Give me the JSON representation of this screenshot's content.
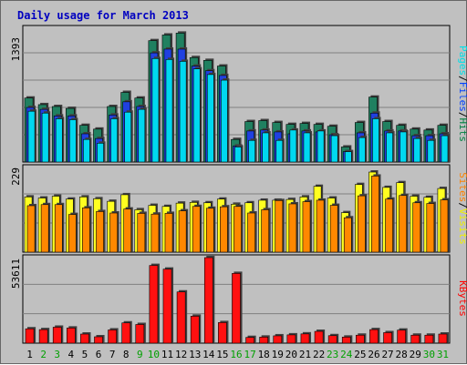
{
  "chart_data": {
    "type": "bar",
    "title": "Daily usage for March 2013",
    "categories": [
      "1",
      "2",
      "3",
      "4",
      "5",
      "6",
      "7",
      "8",
      "9",
      "10",
      "11",
      "12",
      "13",
      "14",
      "15",
      "16",
      "17",
      "18",
      "19",
      "20",
      "21",
      "22",
      "23",
      "24",
      "25",
      "26",
      "27",
      "28",
      "29",
      "30",
      "31"
    ],
    "weekend_days": [
      "2",
      "3",
      "9",
      "10",
      "16",
      "17",
      "23",
      "24",
      "30",
      "31"
    ],
    "panels": [
      {
        "name": "hits-files-pages",
        "ylabel_max": "1393",
        "ylim": [
          0,
          1393
        ],
        "legend": [
          {
            "label": "Pages",
            "color": "#00e0e8"
          },
          {
            "label": "/",
            "color": "#000000"
          },
          {
            "label": "Files",
            "color": "#0040ff"
          },
          {
            "label": "/",
            "color": "#000000"
          },
          {
            "label": "Hits",
            "color": "#008040"
          }
        ],
        "series": [
          {
            "name": "Hits",
            "color": "#208060",
            "values": [
              680,
              610,
              590,
              570,
              390,
              350,
              590,
              740,
              680,
              1290,
              1350,
              1370,
              1110,
              1080,
              1020,
              240,
              430,
              440,
              420,
              400,
              410,
              400,
              380,
              160,
              420,
              690,
              430,
              390,
              350,
              340,
              390
            ]
          },
          {
            "name": "Files",
            "color": "#2040e0",
            "values": [
              580,
              560,
              490,
              490,
              300,
              250,
              500,
              640,
              590,
              1160,
              1200,
              1200,
              1020,
              970,
              920,
              170,
              330,
              340,
              320,
              300,
              330,
              320,
              290,
              110,
              310,
              520,
              330,
              330,
              280,
              280,
              300
            ]
          },
          {
            "name": "Pages",
            "color": "#00d8f0",
            "values": [
              540,
              520,
              460,
              450,
              240,
              200,
              460,
              530,
              560,
              1100,
              1090,
              1070,
              990,
              930,
              870,
              160,
              230,
              310,
              230,
              340,
              310,
              330,
              280,
              110,
              260,
              460,
              310,
              320,
              250,
              230,
              280
            ]
          }
        ]
      },
      {
        "name": "visits-sites",
        "ylabel_max": "229",
        "ylim": [
          0,
          229
        ],
        "legend": [
          {
            "label": "Sites",
            "color": "#ff8000"
          },
          {
            "label": "/",
            "color": "#000000"
          },
          {
            "label": "Visits",
            "color": "#f0f000"
          }
        ],
        "series": [
          {
            "name": "Visits",
            "color": "#ffff20",
            "values": [
              151,
              148,
              153,
              145,
              151,
              146,
              139,
              157,
              116,
              128,
              125,
              134,
              136,
              135,
              145,
              131,
              135,
              142,
              142,
              144,
              151,
              180,
              148,
              108,
              185,
              219,
              177,
              190,
              153,
              150,
              174
            ]
          },
          {
            "name": "Sites",
            "color": "#ff8800",
            "values": [
              127,
              130,
              130,
              103,
              121,
              111,
              107,
              118,
              106,
              104,
              106,
              113,
              125,
              120,
              124,
              125,
              107,
              116,
              141,
              132,
              138,
              142,
              128,
              94,
              154,
              208,
              145,
              155,
              135,
              133,
              143
            ]
          }
        ]
      },
      {
        "name": "kbytes",
        "ylabel_max": "53611",
        "ylim": [
          0,
          53611
        ],
        "legend": [
          {
            "label": "KBytes",
            "color": "#ff0000"
          }
        ],
        "series": [
          {
            "name": "KBytes",
            "color": "#ff1010",
            "values": [
              9000,
              8500,
              10000,
              9500,
              5700,
              4000,
              8300,
              12700,
              11700,
              48700,
              46400,
              32100,
              16900,
              53600,
              12900,
              43700,
              3600,
              3800,
              4600,
              5200,
              5800,
              7400,
              4700,
              3800,
              5000,
              8500,
              6600,
              8200,
              5000,
              5000,
              5700
            ]
          }
        ]
      }
    ]
  }
}
